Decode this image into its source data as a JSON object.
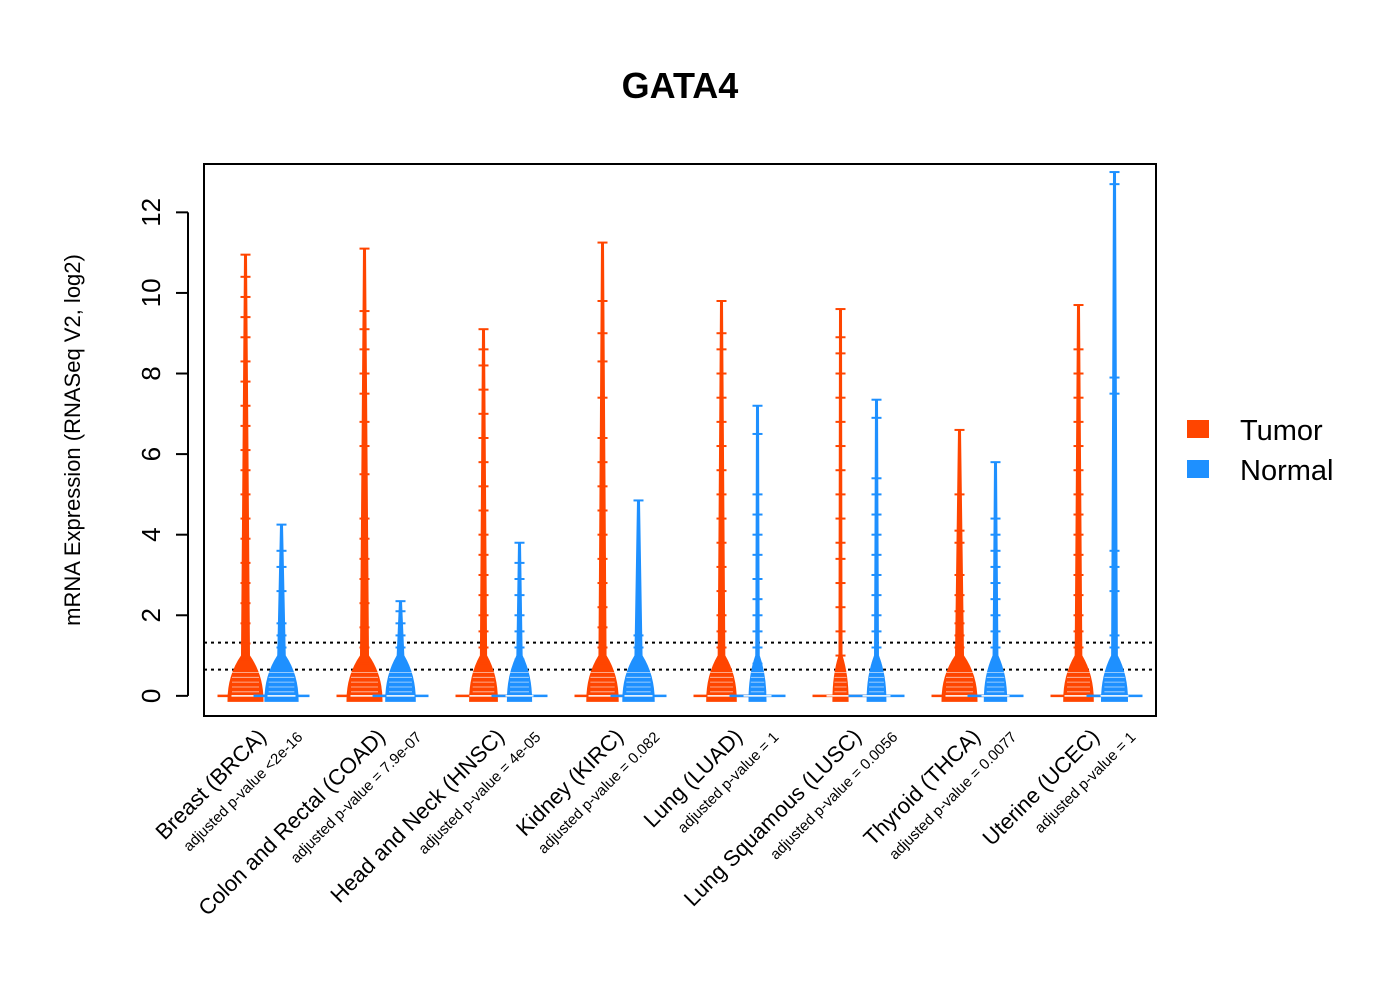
{
  "chart_data": {
    "type": "beanplot",
    "title": "GATA4",
    "ylabel": "mRNA Expression (RNASeq V2, log2)",
    "ylim": [
      -0.5,
      13.2
    ],
    "yticks": [
      "0",
      "2",
      "4",
      "6",
      "8",
      "10",
      "12"
    ],
    "ytick_values": [
      0,
      2,
      4,
      6,
      8,
      10,
      12
    ],
    "reference_lines": [
      0.65,
      1.32
    ],
    "colors": {
      "tumor": "#FF4500",
      "normal": "#1E90FF"
    },
    "legend": {
      "position": "right",
      "entries": [
        "Tumor",
        "Normal"
      ]
    },
    "categories": [
      {
        "label": "Breast (BRCA)",
        "pvalue": "adjusted p-value <2e-16",
        "tumor": {
          "max": 10.95,
          "width": 1.0,
          "points": [
            0.3,
            0.6,
            0.9,
            1.3,
            1.8,
            2.3,
            2.8,
            3.3,
            3.9,
            4.4,
            5.0,
            5.6,
            6.1,
            6.7,
            7.2,
            7.8,
            8.3,
            8.9,
            9.4,
            9.9,
            10.4,
            10.95
          ]
        },
        "normal": {
          "max": 4.25,
          "width": 0.95,
          "points": [
            0.3,
            0.6,
            0.9,
            1.2,
            1.5,
            1.8,
            2.6,
            3.2,
            3.6,
            4.25
          ]
        }
      },
      {
        "label": "Colon and Rectal (COAD)",
        "pvalue": "adjusted p-value = 7.9e-07",
        "tumor": {
          "max": 11.1,
          "width": 1.0,
          "points": [
            0.4,
            0.8,
            1.2,
            1.7,
            2.3,
            2.9,
            3.4,
            3.9,
            4.4,
            5.5,
            6.2,
            6.8,
            7.5,
            8.0,
            8.6,
            9.1,
            9.55,
            11.1
          ]
        },
        "normal": {
          "max": 2.35,
          "width": 0.85,
          "points": [
            0.3,
            0.6,
            0.9,
            1.2,
            1.5,
            1.8,
            2.1,
            2.35
          ]
        }
      },
      {
        "label": "Head and Neck (HNSC)",
        "pvalue": "adjusted p-value = 4e-05",
        "tumor": {
          "max": 9.1,
          "width": 0.8,
          "points": [
            0.4,
            0.8,
            1.2,
            1.6,
            2.0,
            2.5,
            3.0,
            3.5,
            4.0,
            4.6,
            5.2,
            5.8,
            6.4,
            7.0,
            7.6,
            8.2,
            8.6,
            9.1
          ]
        },
        "normal": {
          "max": 3.8,
          "width": 0.7,
          "points": [
            0.3,
            0.6,
            0.9,
            1.2,
            1.6,
            2.0,
            2.5,
            2.9,
            3.3,
            3.8
          ]
        }
      },
      {
        "label": "Kidney (KIRC)",
        "pvalue": "adjusted p-value = 0.082",
        "tumor": {
          "max": 11.25,
          "width": 0.9,
          "points": [
            0.4,
            0.8,
            1.2,
            1.7,
            2.2,
            2.8,
            3.4,
            4.0,
            4.6,
            5.2,
            5.8,
            6.4,
            7.4,
            8.3,
            9.0,
            9.8,
            11.25
          ]
        },
        "normal": {
          "max": 4.85,
          "width": 0.9,
          "points": [
            0.3,
            0.6,
            0.9,
            1.2,
            1.5,
            4.85
          ]
        }
      },
      {
        "label": "Lung (LUAD)",
        "pvalue": "adjusted p-value = 1",
        "tumor": {
          "max": 9.8,
          "width": 0.85,
          "points": [
            0.4,
            0.8,
            1.2,
            1.6,
            2.0,
            2.6,
            3.2,
            3.8,
            4.4,
            5.0,
            5.6,
            6.2,
            6.8,
            7.4,
            8.0,
            8.6,
            9.0,
            9.8
          ]
        },
        "normal": {
          "max": 7.2,
          "width": 0.5,
          "points": [
            0.4,
            0.8,
            1.2,
            1.6,
            2.0,
            2.4,
            2.9,
            3.5,
            4.0,
            4.5,
            5.0,
            6.5,
            7.2
          ]
        }
      },
      {
        "label": "Lung Squamous (LUSC)",
        "pvalue": "adjusted p-value = 0.0056",
        "tumor": {
          "max": 9.6,
          "width": 0.45,
          "points": [
            0.5,
            1.0,
            1.6,
            2.2,
            2.8,
            3.4,
            3.8,
            4.4,
            5.0,
            5.6,
            6.2,
            6.8,
            7.4,
            8.0,
            8.5,
            8.9,
            9.6
          ]
        },
        "normal": {
          "max": 7.35,
          "width": 0.55,
          "points": [
            0.4,
            0.8,
            1.2,
            1.6,
            2.0,
            2.5,
            3.0,
            3.5,
            4.0,
            4.5,
            5.0,
            5.4,
            6.9,
            7.35
          ]
        }
      },
      {
        "label": "Thyroid (THCA)",
        "pvalue": "adjusted p-value = 0.0077",
        "tumor": {
          "max": 6.6,
          "width": 1.0,
          "points": [
            0.3,
            0.6,
            0.9,
            1.2,
            1.5,
            1.8,
            2.1,
            2.5,
            3.0,
            3.8,
            4.1,
            5.0,
            6.6
          ]
        },
        "normal": {
          "max": 5.8,
          "width": 0.65,
          "points": [
            0.4,
            0.8,
            1.2,
            1.6,
            2.0,
            2.4,
            2.8,
            3.2,
            3.6,
            4.0,
            4.4,
            5.8
          ]
        }
      },
      {
        "label": "Uterine (UCEC)",
        "pvalue": "adjusted p-value = 1",
        "tumor": {
          "max": 9.7,
          "width": 0.85,
          "points": [
            0.4,
            0.8,
            1.2,
            1.6,
            2.0,
            2.5,
            3.0,
            3.5,
            4.0,
            4.5,
            5.0,
            5.6,
            6.2,
            6.8,
            7.4,
            8.0,
            8.6,
            9.7
          ]
        },
        "normal": {
          "max": 13.0,
          "width": 0.75,
          "points": [
            0.3,
            0.6,
            0.9,
            1.2,
            1.5,
            2.6,
            3.2,
            3.6,
            7.5,
            7.9,
            12.7,
            13.0
          ]
        }
      }
    ]
  }
}
